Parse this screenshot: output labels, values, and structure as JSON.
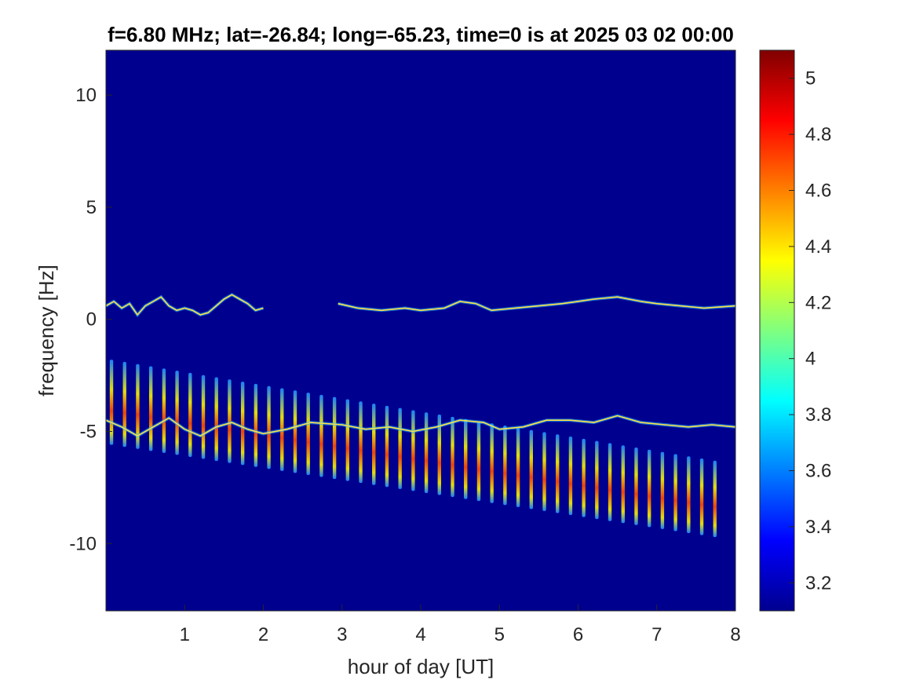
{
  "chart_data": {
    "type": "heatmap",
    "title": "f=6.80 MHz;  lat=-26.84; long=-65.23, time=0 is at 2025 03 02 00:00",
    "xlabel": "hour of day [UT]",
    "ylabel": "frequency [Hz]",
    "xlim": [
      0,
      8
    ],
    "ylim": [
      -13,
      12
    ],
    "xticks": [
      1,
      2,
      3,
      4,
      5,
      6,
      7,
      8
    ],
    "yticks": [
      -10,
      -5,
      0,
      5,
      10
    ],
    "colormap": "jet",
    "background_color": "#00008f",
    "colorbar": {
      "clim": [
        3.1,
        5.1
      ],
      "ticks": [
        3.2,
        3.4,
        3.6,
        3.8,
        4,
        4.2,
        4.4,
        4.6,
        4.8,
        5
      ]
    },
    "traces": [
      {
        "description": "upper Doppler trace",
        "hours": [
          0.0,
          0.1,
          0.2,
          0.3,
          0.4,
          0.5,
          0.6,
          0.7,
          0.8,
          0.9,
          1.0,
          1.1,
          1.2,
          1.3,
          1.4,
          1.5,
          1.6,
          1.7,
          1.8,
          1.9,
          2.0
        ],
        "freq_hz": [
          0.6,
          0.8,
          0.5,
          0.7,
          0.2,
          0.6,
          0.8,
          1.0,
          0.6,
          0.4,
          0.5,
          0.4,
          0.2,
          0.3,
          0.6,
          0.9,
          1.1,
          0.9,
          0.7,
          0.4,
          0.5
        ]
      },
      {
        "description": "upper Doppler trace (after gap)",
        "hours": [
          2.95,
          3.2,
          3.5,
          3.8,
          4.0,
          4.3,
          4.5,
          4.7,
          4.9,
          5.2,
          5.5,
          5.8,
          6.0,
          6.2,
          6.5,
          6.8,
          7.0,
          7.3,
          7.6,
          8.0
        ],
        "freq_hz": [
          0.7,
          0.5,
          0.4,
          0.5,
          0.4,
          0.5,
          0.8,
          0.7,
          0.4,
          0.5,
          0.6,
          0.7,
          0.8,
          0.9,
          1.0,
          0.8,
          0.7,
          0.6,
          0.5,
          0.6
        ]
      },
      {
        "description": "lower Doppler trace",
        "hours": [
          0.0,
          0.2,
          0.4,
          0.6,
          0.8,
          1.0,
          1.2,
          1.4,
          1.6,
          1.8,
          2.0,
          2.3,
          2.6,
          3.0,
          3.3,
          3.6,
          3.9,
          4.2,
          4.5,
          4.8,
          5.0,
          5.3,
          5.6,
          5.9,
          6.2,
          6.5,
          6.8,
          7.1,
          7.4,
          7.7,
          8.0
        ],
        "freq_hz": [
          -4.5,
          -4.8,
          -5.2,
          -4.8,
          -4.4,
          -4.9,
          -5.2,
          -4.8,
          -4.6,
          -4.9,
          -5.1,
          -4.9,
          -4.6,
          -4.7,
          -4.9,
          -4.8,
          -5.0,
          -4.8,
          -4.5,
          -4.6,
          -4.9,
          -4.8,
          -4.5,
          -4.5,
          -4.6,
          -4.3,
          -4.6,
          -4.7,
          -4.8,
          -4.7,
          -4.8
        ]
      }
    ],
    "striations": {
      "description": "periodic vertical striations",
      "start_hour": 0.07,
      "end_hour": 7.9,
      "period_hours": 0.1667,
      "top_start_hz": -1.8,
      "top_end_hz": -6.4,
      "bottom_start_hz": -5.6,
      "bottom_end_hz": -9.8
    }
  }
}
